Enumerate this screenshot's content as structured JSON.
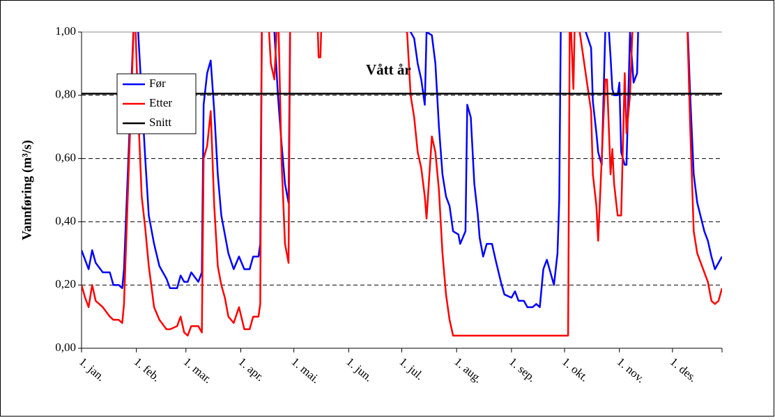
{
  "chart_data": {
    "type": "line",
    "y_label": "Vannføring (m³/s)",
    "annotation": "Vått år",
    "x": [
      1,
      3,
      5,
      7,
      9,
      13,
      17,
      19,
      22,
      24,
      25,
      31,
      33,
      35,
      37,
      39,
      42,
      45,
      49,
      51,
      55,
      57,
      59,
      61,
      63,
      67,
      69,
      70,
      72,
      74,
      76,
      78,
      80,
      82,
      84,
      87,
      90,
      93,
      96,
      98,
      101,
      102,
      103,
      106,
      108,
      110,
      112,
      114,
      116,
      118,
      119,
      134,
      135,
      136,
      137,
      185,
      187,
      189,
      191,
      193,
      195,
      196,
      199,
      201,
      203,
      205,
      207,
      209,
      211,
      214,
      215,
      218,
      219,
      221,
      223,
      225,
      226,
      228,
      230,
      233,
      235,
      238,
      240,
      244,
      246,
      248,
      251,
      253,
      256,
      258,
      260,
      262,
      264,
      266,
      268,
      270,
      271,
      272,
      276,
      277,
      279,
      280,
      289,
      290,
      292,
      293,
      295,
      297,
      298,
      300,
      301,
      302,
      304,
      305,
      306,
      308,
      309,
      311,
      313,
      315,
      316,
      343,
      345,
      347,
      349,
      353,
      355,
      357,
      359,
      361,
      363
    ],
    "series": [
      {
        "name": "Før",
        "color": "#0000ff",
        "values": [
          0.31,
          0.28,
          0.25,
          0.31,
          0.27,
          0.24,
          0.24,
          0.2,
          0.2,
          0.19,
          0.25,
          1.1,
          1.0,
          0.8,
          0.6,
          0.42,
          0.33,
          0.26,
          0.22,
          0.19,
          0.19,
          0.23,
          0.21,
          0.21,
          0.24,
          0.21,
          0.24,
          0.77,
          0.87,
          0.91,
          0.75,
          0.55,
          0.42,
          0.36,
          0.3,
          0.25,
          0.29,
          0.25,
          0.25,
          0.29,
          0.29,
          0.33,
          1.1,
          1.1,
          1.1,
          1.0,
          0.8,
          0.65,
          0.52,
          0.46,
          1.1,
          1.1,
          1.1,
          1.1,
          1.1,
          1.1,
          1.0,
          0.98,
          0.9,
          0.85,
          0.77,
          1.0,
          0.99,
          0.9,
          0.7,
          0.55,
          0.48,
          0.45,
          0.37,
          0.36,
          0.33,
          0.37,
          0.77,
          0.73,
          0.52,
          0.42,
          0.35,
          0.29,
          0.33,
          0.33,
          0.28,
          0.21,
          0.17,
          0.16,
          0.18,
          0.15,
          0.15,
          0.13,
          0.13,
          0.14,
          0.13,
          0.25,
          0.28,
          0.24,
          0.2,
          0.3,
          0.47,
          1.1,
          1.1,
          1.1,
          1.1,
          1.1,
          0.95,
          0.78,
          0.68,
          0.62,
          0.58,
          1.0,
          1.1,
          0.92,
          0.82,
          0.8,
          0.8,
          0.84,
          0.62,
          0.58,
          0.58,
          1.0,
          0.84,
          0.87,
          1.1,
          1.1,
          0.8,
          0.55,
          0.46,
          0.37,
          0.34,
          0.29,
          0.25,
          0.27,
          0.29
        ]
      },
      {
        "name": "Etter",
        "color": "#ff0000",
        "values": [
          0.2,
          0.16,
          0.13,
          0.2,
          0.15,
          0.13,
          0.1,
          0.09,
          0.09,
          0.08,
          0.14,
          1.1,
          0.75,
          0.48,
          0.38,
          0.26,
          0.13,
          0.09,
          0.06,
          0.06,
          0.07,
          0.1,
          0.05,
          0.04,
          0.07,
          0.07,
          0.05,
          0.6,
          0.64,
          0.75,
          0.45,
          0.26,
          0.2,
          0.16,
          0.1,
          0.08,
          0.13,
          0.06,
          0.06,
          0.1,
          0.1,
          0.14,
          1.1,
          1.1,
          0.9,
          0.85,
          1.1,
          0.6,
          0.33,
          0.27,
          1.1,
          1.1,
          0.92,
          0.92,
          1.1,
          1.0,
          0.8,
          0.73,
          0.62,
          0.57,
          0.48,
          0.41,
          0.67,
          0.62,
          0.5,
          0.3,
          0.17,
          0.09,
          0.04,
          0.04,
          0.04,
          0.04,
          0.04,
          0.04,
          0.04,
          0.04,
          0.04,
          0.04,
          0.04,
          0.04,
          0.04,
          0.04,
          0.04,
          0.04,
          0.04,
          0.04,
          0.04,
          0.04,
          0.04,
          0.04,
          0.04,
          0.04,
          0.04,
          0.04,
          0.04,
          0.04,
          0.04,
          0.04,
          0.04,
          1.1,
          0.82,
          1.1,
          0.75,
          0.55,
          0.45,
          0.34,
          0.6,
          0.85,
          0.85,
          0.55,
          0.63,
          0.52,
          0.42,
          0.42,
          0.42,
          0.87,
          0.68,
          0.8,
          1.1,
          1.1,
          1.1,
          1.1,
          0.7,
          0.37,
          0.3,
          0.24,
          0.21,
          0.15,
          0.14,
          0.15,
          0.19
        ]
      }
    ],
    "hlines": [
      {
        "name": "Snitt",
        "color": "#000000",
        "value": 0.805
      }
    ],
    "xlim": [
      1,
      363
    ],
    "xticks": [
      {
        "value": 1,
        "label": "1. jan."
      },
      {
        "value": 32,
        "label": "1. feb."
      },
      {
        "value": 60,
        "label": "1. mar."
      },
      {
        "value": 91,
        "label": "1. apr."
      },
      {
        "value": 121,
        "label": "1. mai."
      },
      {
        "value": 152,
        "label": "1. jun."
      },
      {
        "value": 182,
        "label": "1. jul."
      },
      {
        "value": 213,
        "label": "1. aug."
      },
      {
        "value": 244,
        "label": "1. sep."
      },
      {
        "value": 274,
        "label": "1. okt."
      },
      {
        "value": 305,
        "label": "1. nov."
      },
      {
        "value": 335,
        "label": "1. des."
      }
    ],
    "ylim": [
      0,
      1
    ],
    "yticks": [
      {
        "value": 0,
        "label": "0,00"
      },
      {
        "value": 0.2,
        "label": "0,20"
      },
      {
        "value": 0.4,
        "label": "0,40"
      },
      {
        "value": 0.6,
        "label": "0,60"
      },
      {
        "value": 0.8,
        "label": "0,80"
      },
      {
        "value": 1,
        "label": "1,00"
      }
    ],
    "grid": true
  }
}
